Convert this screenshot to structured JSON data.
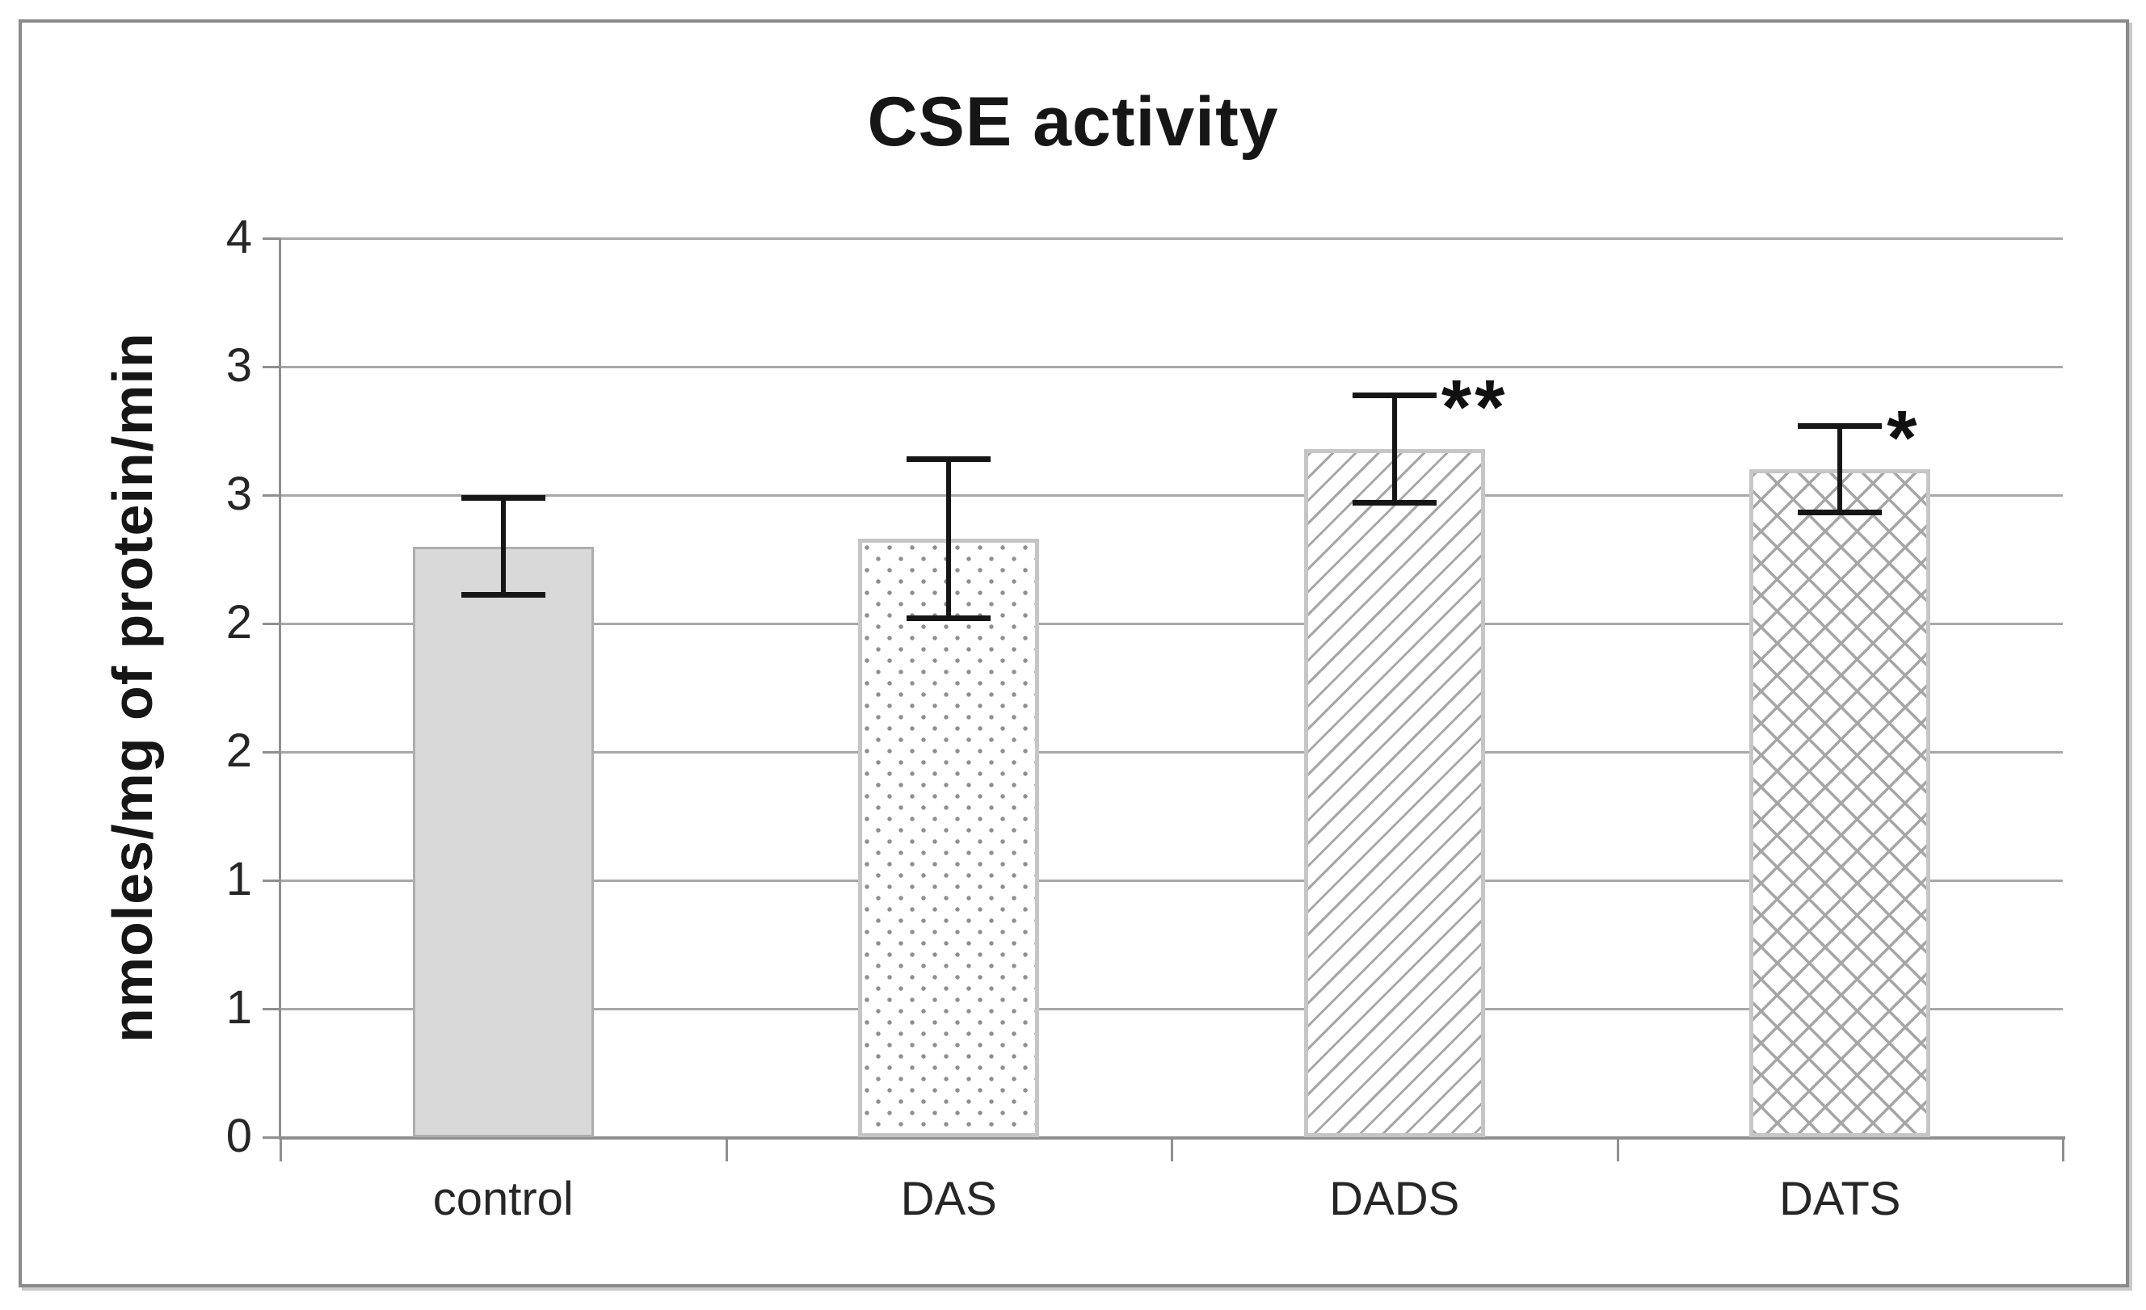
{
  "chart_data": {
    "type": "bar",
    "title": "CSE activity",
    "ylabel": "nmoles/mg of protein/min",
    "xlabel": "",
    "categories": [
      "control",
      "DAS",
      "DADS",
      "DATS"
    ],
    "values": [
      2.3,
      2.33,
      2.68,
      2.6
    ],
    "errors": [
      0.19,
      0.31,
      0.21,
      0.17
    ],
    "significance": [
      "",
      "",
      "**",
      "*"
    ],
    "patterns": [
      "solid-gray",
      "dots",
      "diagonal-hatch",
      "cross-hatch"
    ],
    "ylim": [
      0,
      3.5
    ],
    "ytick_step": 0.5,
    "ytick_labels_bottom_to_top": [
      "0",
      "1",
      "1",
      "2",
      "2",
      "3",
      "3",
      "4"
    ],
    "grid": "horizontal",
    "legend": "none",
    "colors": {
      "bar_fill": "#d9d9d9",
      "pattern_line": "#a6a6a6",
      "bar_border": "#c6c6c6",
      "gridline": "#a8a8a8",
      "axis": "#8f8f8f",
      "error_bar": "#161616",
      "frame_border": "#8a8a8a",
      "text": "#262626",
      "title_text": "#161616"
    }
  }
}
